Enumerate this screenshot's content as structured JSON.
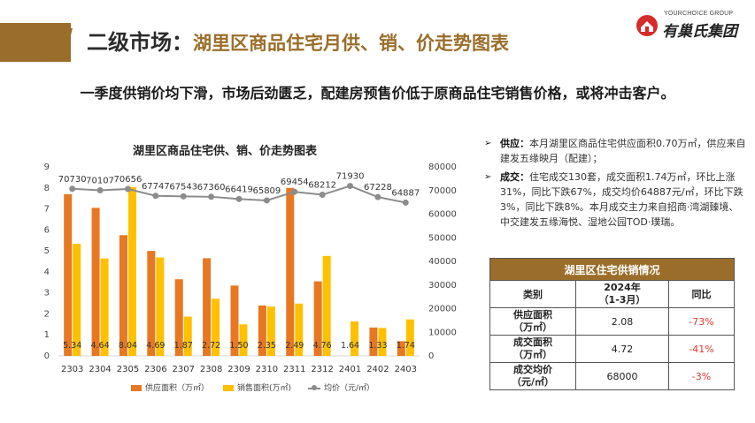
{
  "header": {
    "title_prefix": "二级市场：",
    "title_main": "湖里区商品住宅月供、销、价走势图表",
    "brand_color": "#9a6e2a"
  },
  "logo": {
    "en": "YOURCHOICE GROUP",
    "cn": "有巢氏集团"
  },
  "headline": "一季度供销价均下滑，市场后劲匮乏，配建房预售价低于原商品住宅销售价格，或将冲击客户。",
  "chart_data": {
    "type": "bar",
    "title": "湖里区商品住宅供、销、价走势图表",
    "categories": [
      "2303",
      "2304",
      "2305",
      "2306",
      "2307",
      "2308",
      "2309",
      "2310",
      "2311",
      "2312",
      "2401",
      "2402",
      "2403"
    ],
    "series": [
      {
        "name": "供应面积（万㎡）",
        "type": "bar",
        "axis": "left",
        "color": "#e87722",
        "values": [
          7.7,
          7.05,
          5.75,
          5.0,
          3.65,
          4.65,
          3.35,
          2.4,
          8.0,
          3.55,
          0,
          1.35,
          0.7
        ]
      },
      {
        "name": "销售面积(万㎡)",
        "type": "bar",
        "axis": "left",
        "color": "#ffc000",
        "values": [
          5.34,
          4.64,
          8.04,
          4.69,
          1.87,
          2.72,
          1.5,
          2.35,
          2.49,
          4.76,
          1.64,
          1.33,
          1.74
        ],
        "labels": [
          "5.34",
          "4.64",
          "8.04",
          "4.69",
          "1.87",
          "2.72",
          "1.50",
          "2.35",
          "2.49",
          "4.76",
          "1.64",
          "1.33",
          "1.74"
        ]
      },
      {
        "name": "均价（元/㎡）",
        "type": "line",
        "axis": "right",
        "color": "#8c8c8c",
        "values": [
          70730,
          70107,
          70656,
          67747,
          67543,
          67360,
          66419,
          65809,
          69454,
          68212,
          71930,
          67228,
          64887
        ],
        "labels": [
          "70730",
          "70107",
          "70656",
          "67747",
          "67543",
          "67360",
          "66419",
          "65809",
          "69454",
          "68212",
          "71930",
          "67228",
          "64887"
        ]
      }
    ],
    "y_left": {
      "min": 0,
      "max": 9,
      "ticks": [
        "0",
        "1",
        "2",
        "3",
        "4",
        "5",
        "6",
        "7",
        "8",
        "9"
      ]
    },
    "y_right": {
      "min": 0,
      "max": 80000,
      "ticks": [
        "0",
        "10000",
        "20000",
        "30000",
        "40000",
        "50000",
        "60000",
        "70000",
        "80000"
      ]
    },
    "grid": false,
    "legend": "bottom"
  },
  "bullets": [
    {
      "label": "供应：",
      "text": "本月湖里区商品住宅供应面积0.70万㎡，供应来自建发五缘映月（配建）；"
    },
    {
      "label": "成交：",
      "text": "住宅成交130套，成交面积1.74万㎡，环比上涨31%，同比下跌67%，成交均价64887元/㎡，环比下跌3%，同比下跌8%。本月成交主力来自招商·湾湖臻境、中交建发五缘海悦、湿地公园TOD·璞瑞。"
    }
  ],
  "table": {
    "title": "湖里区住宅供销情况",
    "headers": [
      "类别",
      "2024年\n（1-3月）",
      "同比"
    ],
    "rows": [
      {
        "category": "供应面积\n（万㎡）",
        "value": "2.08",
        "yoy": "-73%"
      },
      {
        "category": "成交面积\n（万㎡）",
        "value": "4.72",
        "yoy": "-41%"
      },
      {
        "category": "成交均价\n（元/㎡）",
        "value": "68000",
        "yoy": "-3%"
      }
    ]
  }
}
